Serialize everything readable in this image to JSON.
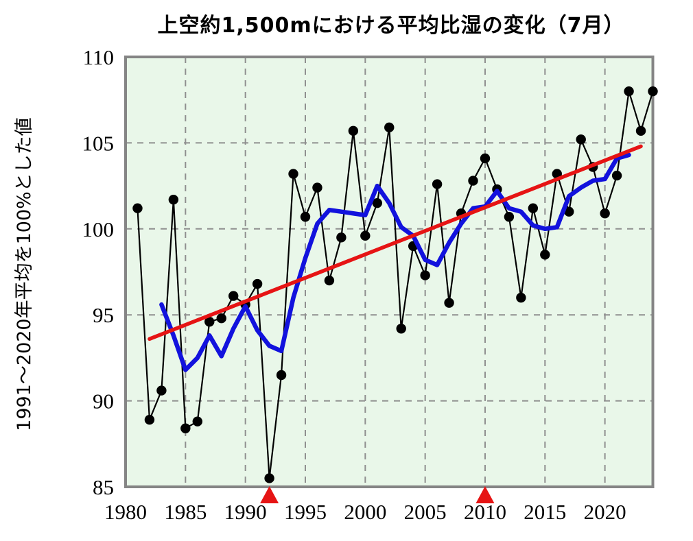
{
  "figure": {
    "title": "上空約1,500mにおける平均比湿の変化（7月）",
    "y_axis_label": "1991～2020年平均を100%とした値"
  },
  "chart_data": {
    "type": "line",
    "title": "上空約1,500mにおける平均比湿の変化（7月）",
    "xlabel": "",
    "ylabel": "1991～2020年平均を100%とした値",
    "x_range": [
      1980,
      2024
    ],
    "ylim": [
      85,
      110
    ],
    "x_ticks": [
      1980,
      1985,
      1990,
      1995,
      2000,
      2005,
      2010,
      2015,
      2020
    ],
    "y_ticks": [
      85,
      90,
      95,
      100,
      105,
      110
    ],
    "grid": "dashed-gray-both-axes",
    "legend": "none",
    "plot_bg_color": "#e9f7e9",
    "border_color": "#858585",
    "series": [
      {
        "name": "annual-value",
        "style": "thin black line with dot markers",
        "color": "#000000",
        "x": [
          1981,
          1982,
          1983,
          1984,
          1985,
          1986,
          1987,
          1988,
          1989,
          1990,
          1991,
          1992,
          1993,
          1994,
          1995,
          1996,
          1997,
          1998,
          1999,
          2000,
          2001,
          2002,
          2003,
          2004,
          2005,
          2006,
          2007,
          2008,
          2009,
          2010,
          2011,
          2012,
          2013,
          2014,
          2015,
          2016,
          2017,
          2018,
          2019,
          2020,
          2021,
          2022,
          2023,
          2024
        ],
        "values": [
          101.2,
          88.9,
          90.6,
          101.7,
          88.4,
          88.8,
          94.6,
          94.8,
          96.1,
          95.6,
          96.8,
          85.5,
          91.5,
          103.2,
          100.7,
          102.4,
          97.0,
          99.5,
          105.7,
          99.6,
          101.5,
          105.9,
          94.2,
          99.0,
          97.3,
          102.6,
          95.7,
          100.9,
          102.8,
          104.1,
          102.3,
          100.7,
          96.0,
          101.2,
          98.5,
          103.2,
          101.0,
          105.2,
          103.6,
          100.9,
          103.1,
          108.0,
          105.7,
          108.0
        ]
      },
      {
        "name": "smoothed-5yr",
        "style": "thick blue line",
        "color": "#1212dd",
        "x": [
          1983,
          1984,
          1985,
          1986,
          1987,
          1988,
          1989,
          1990,
          1991,
          1992,
          1993,
          1994,
          1995,
          1996,
          1997,
          1998,
          1999,
          2000,
          2001,
          2002,
          2003,
          2004,
          2005,
          2006,
          2007,
          2008,
          2009,
          2010,
          2011,
          2012,
          2013,
          2014,
          2015,
          2016,
          2017,
          2018,
          2019,
          2020,
          2021,
          2022
        ],
        "values": [
          95.6,
          93.8,
          91.8,
          92.5,
          93.8,
          92.6,
          94.2,
          95.5,
          94.1,
          93.2,
          92.9,
          96.0,
          98.3,
          100.3,
          101.1,
          101.0,
          100.9,
          100.8,
          102.5,
          101.5,
          100.1,
          99.6,
          98.2,
          97.9,
          99.2,
          100.3,
          101.2,
          101.3,
          102.2,
          101.2,
          101.0,
          100.2,
          100.0,
          100.1,
          101.9,
          102.4,
          102.8,
          102.9,
          104.1,
          104.3
        ]
      },
      {
        "name": "long-term-trend",
        "style": "straight red line",
        "color": "#e61414",
        "x": [
          1982,
          2023
        ],
        "values": [
          93.6,
          104.8
        ]
      }
    ],
    "annotations": [
      {
        "shape": "triangle-up",
        "color": "#e61414",
        "x": 1992,
        "position": "below-x-axis"
      },
      {
        "shape": "triangle-up",
        "color": "#e61414",
        "x": 2010,
        "position": "below-x-axis"
      }
    ]
  }
}
